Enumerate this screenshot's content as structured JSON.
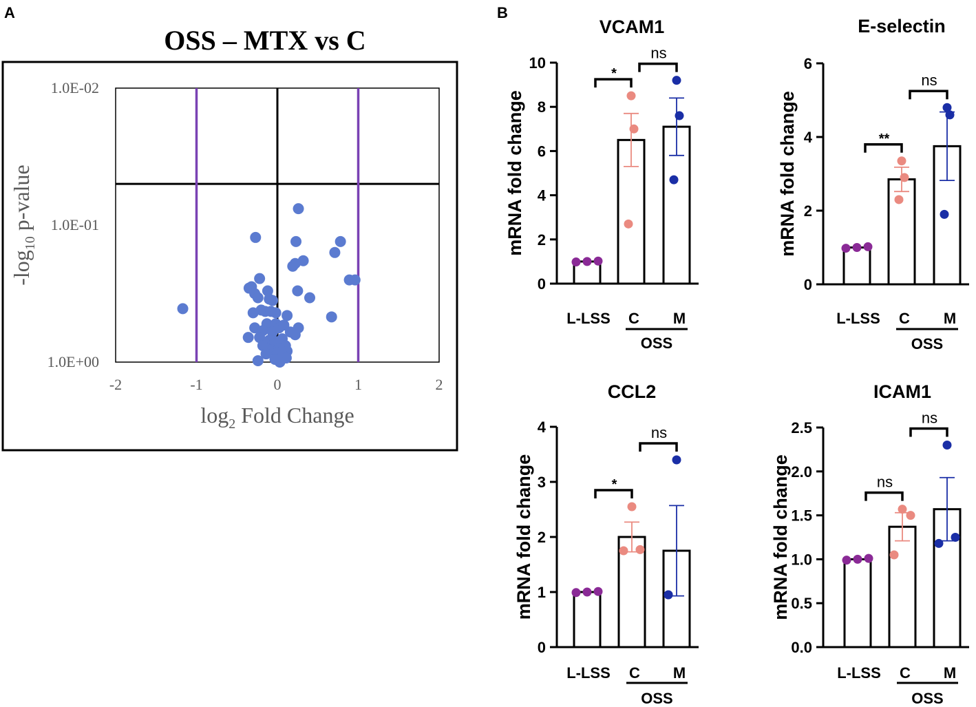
{
  "panel_labels": {
    "a": "A",
    "b": "B"
  },
  "colors": {
    "volcano_point": "#5b7bd0",
    "threshold_line": "#7a42b4",
    "llss_dot": "#8a2a96",
    "c_dot": "#ea8a80",
    "m_dot": "#1a2ea6"
  },
  "chart_data": [
    {
      "type": "scatter",
      "name": "volcano",
      "title": "OSS – MTX vs C",
      "xlabel_main": "log",
      "xlabel_sub": "2",
      "xlabel_rest": " Fold Change",
      "ylabel_main": "-log",
      "ylabel_sub": "10",
      "ylabel_rest": " p-value",
      "xlim": [
        -2,
        2
      ],
      "x_ticks": [
        "-2",
        "-1",
        "0",
        "1",
        "2"
      ],
      "y_ticks": [
        "1.0E-02",
        "1.0E-01",
        "1.0E+00"
      ],
      "y_tick_values": [
        2,
        1,
        0
      ],
      "ylim": [
        0,
        2
      ],
      "fc_thresholds": [
        -1,
        1
      ],
      "p_threshold_neglog10": 1.301,
      "points": [
        [
          -1.17,
          0.39
        ],
        [
          -0.27,
          0.91
        ],
        [
          -0.22,
          0.61
        ],
        [
          -0.35,
          0.54
        ],
        [
          -0.32,
          0.55
        ],
        [
          -0.28,
          0.5
        ],
        [
          -0.24,
          0.47
        ],
        [
          -0.12,
          0.52
        ],
        [
          -0.06,
          0.45
        ],
        [
          -0.1,
          0.46
        ],
        [
          -0.2,
          0.38
        ],
        [
          -0.15,
          0.37
        ],
        [
          -0.3,
          0.36
        ],
        [
          -0.08,
          0.37
        ],
        [
          -0.02,
          0.36
        ],
        [
          -0.28,
          0.25
        ],
        [
          -0.13,
          0.28
        ],
        [
          -0.02,
          0.28
        ],
        [
          -0.18,
          0.23
        ],
        [
          -0.06,
          0.22
        ],
        [
          0.02,
          0.25
        ],
        [
          -0.36,
          0.18
        ],
        [
          -0.22,
          0.18
        ],
        [
          -0.1,
          0.16
        ],
        [
          -0.03,
          0.15
        ],
        [
          0.06,
          0.17
        ],
        [
          -0.18,
          0.12
        ],
        [
          0.1,
          0.12
        ],
        [
          -0.07,
          0.09
        ],
        [
          0.02,
          0.1
        ],
        [
          0.12,
          0.08
        ],
        [
          -0.14,
          0.06
        ],
        [
          0.0,
          0.07
        ],
        [
          0.07,
          0.05
        ],
        [
          -0.24,
          0.01
        ],
        [
          -0.03,
          0.02
        ],
        [
          0.11,
          0.03
        ],
        [
          0.03,
          0.0
        ],
        [
          0.08,
          0.27
        ],
        [
          0.16,
          0.22
        ],
        [
          0.22,
          0.2
        ],
        [
          0.26,
          0.25
        ],
        [
          0.12,
          0.34
        ],
        [
          0.26,
          1.12
        ],
        [
          0.23,
          0.88
        ],
        [
          0.32,
          0.74
        ],
        [
          0.22,
          0.72
        ],
        [
          0.19,
          0.7
        ],
        [
          0.25,
          0.52
        ],
        [
          0.4,
          0.47
        ],
        [
          0.78,
          0.88
        ],
        [
          0.71,
          0.8
        ],
        [
          0.89,
          0.6
        ],
        [
          0.96,
          0.6
        ],
        [
          0.67,
          0.33
        ]
      ]
    },
    {
      "type": "bar",
      "name": "vcam1",
      "title": "VCAM1",
      "ylabel": "mRNA fold change",
      "ylim": [
        0,
        10
      ],
      "y_ticks": [
        0,
        2,
        4,
        6,
        8,
        10
      ],
      "y_tick_labels": [
        "0",
        "2",
        "4",
        "6",
        "8",
        "10"
      ],
      "categories": [
        "L-LSS",
        "C",
        "M"
      ],
      "group_label": "OSS",
      "values": [
        1.0,
        6.5,
        7.1
      ],
      "sem": [
        0,
        1.2,
        1.3
      ],
      "points": [
        [
          0.98,
          1.0,
          1.02
        ],
        [
          2.7,
          7.0,
          8.5
        ],
        [
          4.7,
          7.6,
          9.2
        ]
      ],
      "comparisons": [
        {
          "label": "*",
          "pair": [
            0,
            1
          ]
        },
        {
          "label": "ns",
          "pair": [
            1,
            2
          ]
        }
      ]
    },
    {
      "type": "bar",
      "name": "eselectin",
      "title": "E-selectin",
      "ylabel": "mRNA fold change",
      "ylim": [
        0,
        6
      ],
      "y_ticks": [
        0,
        2,
        4,
        6
      ],
      "y_tick_labels": [
        "0",
        "2",
        "4",
        "6"
      ],
      "categories": [
        "L-LSS",
        "C",
        "M"
      ],
      "group_label": "OSS",
      "values": [
        1.0,
        2.85,
        3.75
      ],
      "sem": [
        0,
        0.33,
        0.93
      ],
      "points": [
        [
          0.98,
          1.0,
          1.02
        ],
        [
          2.3,
          2.9,
          3.35
        ],
        [
          1.9,
          4.6,
          4.8
        ]
      ],
      "comparisons": [
        {
          "label": "**",
          "pair": [
            0,
            1
          ]
        },
        {
          "label": "ns",
          "pair": [
            1,
            2
          ]
        }
      ]
    },
    {
      "type": "bar",
      "name": "ccl2",
      "title": "CCL2",
      "ylabel": "mRNA fold change",
      "ylim": [
        0,
        4
      ],
      "y_ticks": [
        0,
        1,
        2,
        3,
        4
      ],
      "y_tick_labels": [
        "0",
        "1",
        "2",
        "3",
        "4"
      ],
      "categories": [
        "L-LSS",
        "C",
        "M"
      ],
      "group_label": "OSS",
      "values": [
        1.0,
        2.0,
        1.75
      ],
      "sem": [
        0,
        0.27,
        0.82
      ],
      "points": [
        [
          0.99,
          1.0,
          1.01
        ],
        [
          1.75,
          1.77,
          2.55
        ],
        [
          0.95,
          0.95,
          3.4
        ]
      ],
      "comparisons": [
        {
          "label": "*",
          "pair": [
            0,
            1
          ]
        },
        {
          "label": "ns",
          "pair": [
            1,
            2
          ]
        }
      ]
    },
    {
      "type": "bar",
      "name": "icam1",
      "title": "ICAM1",
      "ylabel": "mRNA fold change",
      "ylim": [
        0,
        2.5
      ],
      "y_ticks": [
        0,
        0.5,
        1.0,
        1.5,
        2.0,
        2.5
      ],
      "y_tick_labels": [
        "0.0",
        "0.5",
        "1.0",
        "1.5",
        "2.0",
        "2.5"
      ],
      "categories": [
        "L-LSS",
        "C",
        "M"
      ],
      "group_label": "OSS",
      "values": [
        1.0,
        1.37,
        1.57
      ],
      "sem": [
        0,
        0.16,
        0.36
      ],
      "points": [
        [
          0.99,
          1.0,
          1.01
        ],
        [
          1.05,
          1.5,
          1.57
        ],
        [
          1.18,
          1.25,
          2.3
        ]
      ],
      "comparisons": [
        {
          "label": "ns",
          "pair": [
            0,
            1
          ]
        },
        {
          "label": "ns",
          "pair": [
            1,
            2
          ]
        }
      ]
    }
  ]
}
